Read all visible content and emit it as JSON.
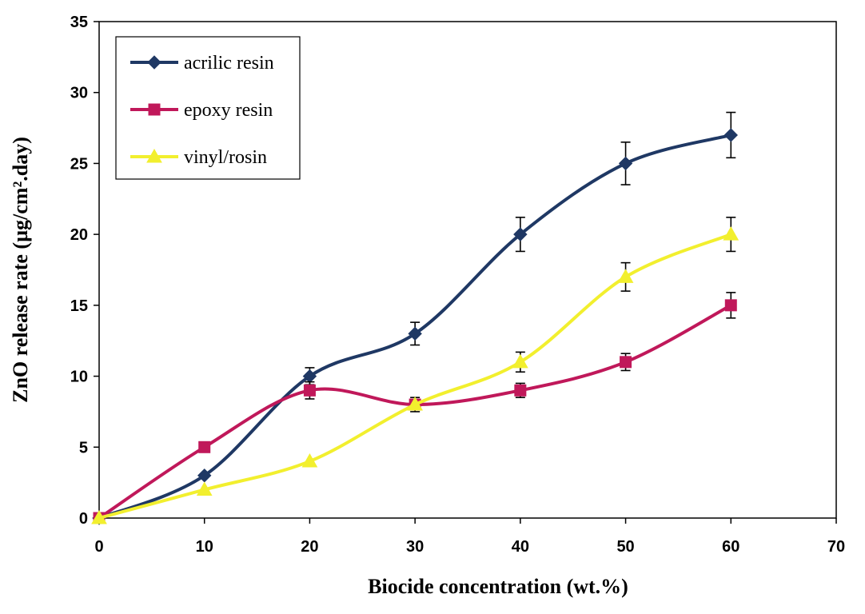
{
  "chart_data": {
    "type": "line",
    "xlabel": "Biocide concentration (wt.%)",
    "ylabel": "ZnO release rate (µg/cm².day)",
    "xlim": [
      0,
      70
    ],
    "ylim": [
      0,
      35
    ],
    "xticks": [
      "0",
      "10",
      "20",
      "30",
      "40",
      "50",
      "60",
      "70"
    ],
    "yticks": [
      "0",
      "5",
      "10",
      "15",
      "20",
      "25",
      "30",
      "35"
    ],
    "grid": false,
    "legend_position": "top-left",
    "series": [
      {
        "name": "acrilic resin",
        "marker": "diamond",
        "color": "#1f3864",
        "x": [
          0,
          10,
          20,
          30,
          40,
          50,
          60
        ],
        "y": [
          0,
          3,
          10,
          13,
          20,
          25,
          27
        ],
        "error": [
          0,
          0,
          0.6,
          0.8,
          1.2,
          1.5,
          1.6
        ]
      },
      {
        "name": "epoxy resin",
        "marker": "square",
        "color": "#c0185a",
        "x": [
          0,
          10,
          20,
          30,
          40,
          50,
          60
        ],
        "y": [
          0,
          5,
          9,
          8,
          9,
          11,
          15
        ],
        "error": [
          0,
          0,
          0.6,
          0.5,
          0.5,
          0.6,
          0.9
        ]
      },
      {
        "name": "vinyl/rosin",
        "marker": "triangle",
        "color": "#f2ef2e",
        "x": [
          0,
          10,
          20,
          30,
          40,
          50,
          60
        ],
        "y": [
          0,
          2,
          4,
          8,
          11,
          17,
          20
        ],
        "error": [
          0,
          0,
          0,
          0,
          0.7,
          1.0,
          1.2
        ]
      }
    ]
  }
}
